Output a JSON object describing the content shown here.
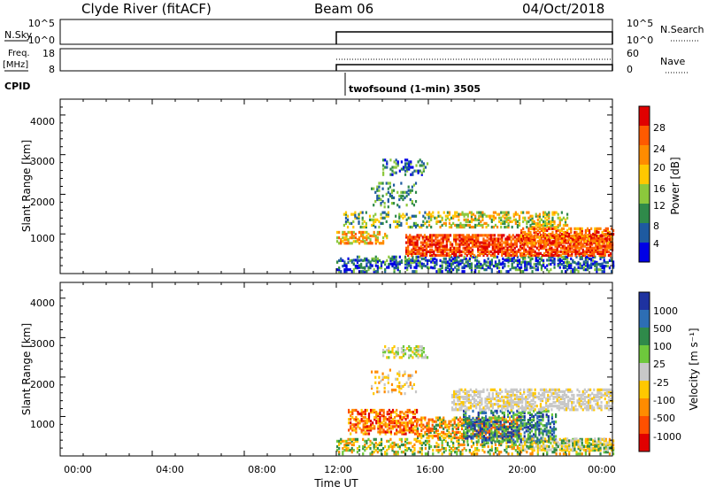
{
  "header": {
    "station": "Clyde River (fitACF)",
    "beam": "Beam 06",
    "date": "04/Oct/2018"
  },
  "strips": {
    "nsky_label": "N.Sky",
    "nsky_ticks": [
      "10^5",
      "10^0"
    ],
    "nsearch_label": "N.Search",
    "nsearch_ticks": [
      "10^5",
      "10^0"
    ],
    "freq_label_1": "Freq.",
    "freq_label_2": "[MHz]",
    "freq_ticks": [
      "18",
      "8"
    ],
    "nave_label": "Nave",
    "nave_ticks": [
      "60",
      "0"
    ],
    "cpid_label": "CPID",
    "cpid_value": "twofsound (1-min) 3505"
  },
  "panels": {
    "power_ylabel": "Slant Range [km]",
    "velocity_ylabel": "Slant Range [km]",
    "yticks": [
      "4000",
      "3000",
      "2000",
      "1000"
    ],
    "xticks": [
      "00:00",
      "04:00",
      "08:00",
      "12:00",
      "16:00",
      "20:00",
      "00:00"
    ],
    "xlabel": "Time UT"
  },
  "power_scale": {
    "label": "Power [dB]",
    "ticks": [
      "28",
      "24",
      "20",
      "16",
      "12",
      "8",
      "4"
    ],
    "colors": [
      "#e00000",
      "#ff5a00",
      "#ff8c00",
      "#ffc800",
      "#8cc83c",
      "#2f8a4a",
      "#1e5aa0",
      "#0000e6"
    ]
  },
  "velocity_scale": {
    "label": "Velocity [m s⁻¹]",
    "ticks": [
      "1000",
      "500",
      "100",
      "25",
      "-25",
      "-100",
      "-500",
      "-1000"
    ],
    "colors": [
      "#1e32a0",
      "#2d6eb4",
      "#2f8a4a",
      "#6ec83c",
      "#c8c8c8",
      "#ffc800",
      "#ff8c00",
      "#ff5000",
      "#e00000"
    ]
  },
  "chart_data": {
    "type": "heatmap",
    "x_range_hours": [
      0,
      24
    ],
    "y_range_km": [
      180,
      4500
    ],
    "data_start_hour": 12
  }
}
